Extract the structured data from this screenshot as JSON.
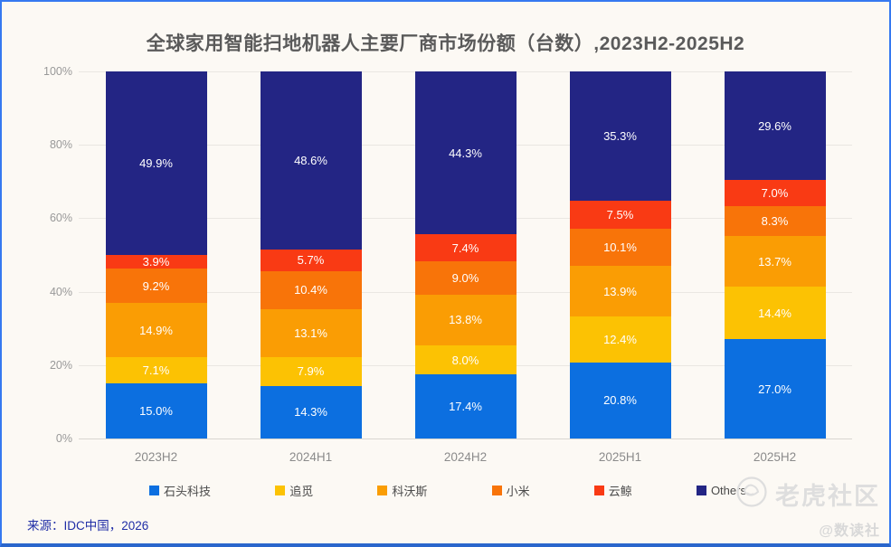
{
  "chart_data": {
    "type": "bar",
    "stacked": true,
    "title": "全球家用智能扫地机器人主要厂商市场份额（台数）,2023H2-2025H2",
    "categories": [
      "2023H2",
      "2024H1",
      "2024H2",
      "2025H1",
      "2025H2"
    ],
    "series": [
      {
        "name": "石头科技",
        "color": "#0C6FE0",
        "values": [
          15.0,
          14.3,
          17.4,
          20.8,
          27.0
        ]
      },
      {
        "name": "追觅",
        "color": "#FCC203",
        "values": [
          7.1,
          7.9,
          8.0,
          12.4,
          14.4
        ]
      },
      {
        "name": "科沃斯",
        "color": "#FA9D04",
        "values": [
          14.9,
          13.1,
          13.8,
          13.9,
          13.7
        ]
      },
      {
        "name": "小米",
        "color": "#F87409",
        "values": [
          9.2,
          10.4,
          9.0,
          10.1,
          8.3
        ]
      },
      {
        "name": "云鲸",
        "color": "#F93A14",
        "values": [
          3.9,
          5.7,
          7.4,
          7.5,
          7.0
        ]
      },
      {
        "name": "Others",
        "color": "#232584",
        "values": [
          49.9,
          48.6,
          44.3,
          35.3,
          29.6
        ]
      }
    ],
    "value_unit": "%",
    "value_label_decimals": 1,
    "ylim": [
      0,
      100
    ],
    "yticks": [
      0,
      20,
      40,
      60,
      80,
      100
    ],
    "ytick_suffix": "%",
    "grid": true,
    "legend_position": "bottom"
  },
  "footer": {
    "source": "来源：IDC中国，2026"
  },
  "watermark": {
    "community": "老虎社区",
    "handle": "@数读社"
  },
  "colors": {
    "page_border": "#3679F0",
    "background": "#FCF9F4",
    "title_text": "#5A5A5A",
    "axis_text": "#999999",
    "gridline": "#EAE7E2",
    "segment_label_text": "#FFFFFF",
    "source_text": "#1F2DA6",
    "watermark_text": "#DEDEDE"
  }
}
